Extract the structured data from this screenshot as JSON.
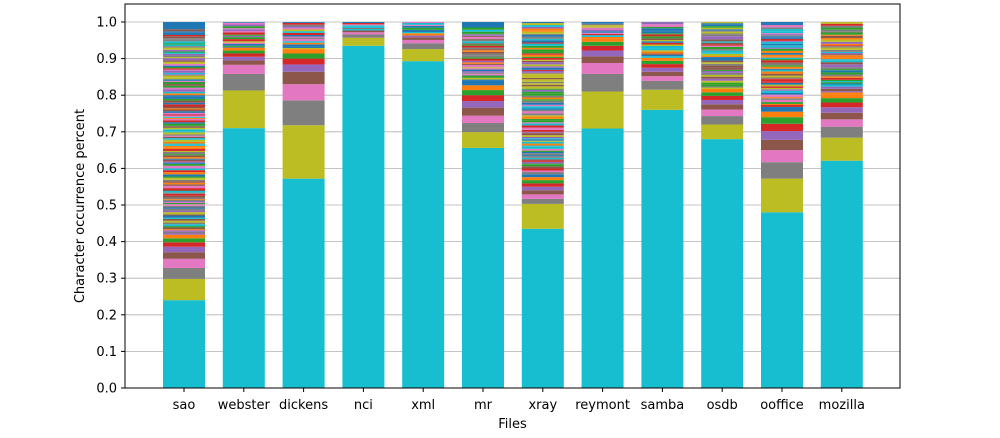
{
  "chart_data": {
    "type": "bar",
    "stacked": true,
    "title": "",
    "xlabel": "Files",
    "ylabel": "Character occurrence percent",
    "ylim": [
      0,
      1.0
    ],
    "yticks": [
      "0.0",
      "0.1",
      "0.2",
      "0.3",
      "0.4",
      "0.5",
      "0.6",
      "0.7",
      "0.8",
      "0.9",
      "1.0"
    ],
    "grid": "horizontal",
    "categories": [
      "sao",
      "webster",
      "dickens",
      "nci",
      "xml",
      "mr",
      "xray",
      "reymont",
      "samba",
      "osdb",
      "ooffice",
      "mozilla"
    ],
    "palette": [
      "#17becf",
      "#bcbd22",
      "#7f7f7f",
      "#e377c2",
      "#8c564b",
      "#9467bd",
      "#d62728",
      "#2ca02c",
      "#ff7f0e",
      "#1f77b4"
    ],
    "series_note": "Each bar stacks the per-character occurrence fractions sorted in descending order; the top segments are many thin slices whose values are shown as 'other'.",
    "bars": [
      {
        "name": "sao",
        "segments": [
          0.24,
          0.058,
          0.03,
          0.025,
          0.018,
          0.015,
          0.012,
          0.011,
          0.01
        ],
        "other": 0.581
      },
      {
        "name": "webster",
        "segments": [
          0.71,
          0.103,
          0.045,
          0.025,
          0.012,
          0.01,
          0.009,
          0.008,
          0.007
        ],
        "other": 0.071
      },
      {
        "name": "dickens",
        "segments": [
          0.572,
          0.146,
          0.068,
          0.044,
          0.034,
          0.02,
          0.016,
          0.014,
          0.012
        ],
        "other": 0.074
      },
      {
        "name": "nci",
        "segments": [
          0.935,
          0.022,
          0.009,
          0.006,
          0.005
        ],
        "other": 0.023
      },
      {
        "name": "xml",
        "segments": [
          0.893,
          0.033,
          0.016,
          0.009,
          0.007,
          0.005
        ],
        "other": 0.037
      },
      {
        "name": "mr",
        "segments": [
          0.656,
          0.043,
          0.025,
          0.02,
          0.022,
          0.018,
          0.016,
          0.014,
          0.013,
          0.012
        ],
        "other": 0.161
      },
      {
        "name": "xray",
        "segments": [
          0.435,
          0.068,
          0.014,
          0.012,
          0.011,
          0.01,
          0.009,
          0.009,
          0.008,
          0.008
        ],
        "other": 0.416
      },
      {
        "name": "reymont",
        "segments": [
          0.709,
          0.101,
          0.048,
          0.03,
          0.018,
          0.016,
          0.013,
          0.011,
          0.01
        ],
        "other": 0.044
      },
      {
        "name": "samba",
        "segments": [
          0.76,
          0.055,
          0.024,
          0.013,
          0.012,
          0.011,
          0.01,
          0.009,
          0.008
        ],
        "other": 0.098
      },
      {
        "name": "osdb",
        "segments": [
          0.68,
          0.04,
          0.023,
          0.018,
          0.014,
          0.012,
          0.011,
          0.01,
          0.009
        ],
        "other": 0.183
      },
      {
        "name": "ooffice",
        "segments": [
          0.48,
          0.092,
          0.045,
          0.033,
          0.028,
          0.024,
          0.02,
          0.018,
          0.015,
          0.013
        ],
        "other": 0.232
      },
      {
        "name": "mozilla",
        "segments": [
          0.621,
          0.063,
          0.03,
          0.02,
          0.018,
          0.015,
          0.013,
          0.012,
          0.011
        ],
        "other": 0.197
      }
    ]
  }
}
